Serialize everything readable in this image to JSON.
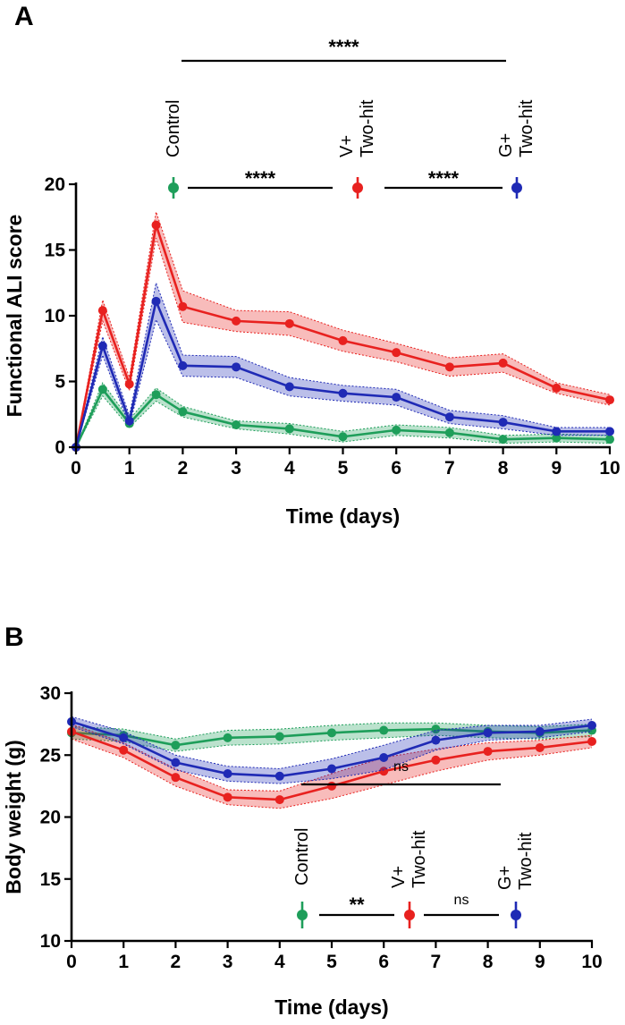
{
  "colors": {
    "control": "#1e9e5a",
    "vplus": "#e8211f",
    "gplus": "#1f2ab5"
  },
  "chart_data": [
    {
      "panel": "A",
      "type": "line",
      "xlabel": "Time (days)",
      "ylabel": "Functional ALI score",
      "xlim": [
        0,
        10
      ],
      "ylim": [
        0,
        20
      ],
      "xticks": [
        0,
        1,
        2,
        3,
        4,
        5,
        6,
        7,
        8,
        9,
        10
      ],
      "yticks": [
        0,
        5,
        10,
        15,
        20
      ],
      "xtick_labels": [
        "0",
        "1",
        "2",
        "3",
        "4",
        "5",
        "6",
        "7",
        "8",
        "9",
        "10"
      ],
      "ytick_labels": [
        "0",
        "5",
        "10",
        "15",
        "20"
      ],
      "x": [
        0,
        0.5,
        1,
        1.5,
        2,
        3,
        4,
        5,
        6,
        7,
        8,
        9,
        10
      ],
      "series": [
        {
          "name": "Control",
          "color": "#1e9e5a",
          "values": [
            0,
            4.4,
            1.8,
            4.0,
            2.7,
            1.7,
            1.4,
            0.8,
            1.3,
            1.1,
            0.6,
            0.7,
            0.6
          ],
          "error": [
            0,
            0.5,
            0.3,
            0.5,
            0.4,
            0.3,
            0.4,
            0.4,
            0.4,
            0.4,
            0.3,
            0.3,
            0.3
          ]
        },
        {
          "name": "V+ Two-hit",
          "color": "#e8211f",
          "values": [
            0,
            10.4,
            4.8,
            16.9,
            10.7,
            9.6,
            9.4,
            8.1,
            7.2,
            6.1,
            6.4,
            4.5,
            3.6
          ],
          "error": [
            0,
            0.8,
            0.5,
            1.0,
            1.2,
            0.8,
            0.9,
            0.8,
            0.7,
            0.7,
            0.7,
            0.4,
            0.4
          ]
        },
        {
          "name": "G+ Two-hit",
          "color": "#1f2ab5",
          "values": [
            0,
            7.7,
            2.0,
            11.1,
            6.2,
            6.1,
            4.6,
            4.1,
            3.8,
            2.3,
            1.9,
            1.2,
            1.2
          ],
          "error": [
            0,
            0.7,
            0.4,
            1.4,
            0.8,
            0.8,
            0.7,
            0.6,
            0.6,
            0.5,
            0.5,
            0.3,
            0.3
          ]
        }
      ],
      "legend_labels": [
        [
          "Control"
        ],
        [
          "V+",
          "Two-hit"
        ],
        [
          "G+",
          "Two-hit"
        ]
      ],
      "annotations": [
        {
          "text": "****",
          "from_group": 0,
          "to_group": 2,
          "level": "top"
        },
        {
          "text": "****",
          "from_group": 0,
          "to_group": 1,
          "level": "legend"
        },
        {
          "text": "****",
          "from_group": 1,
          "to_group": 2,
          "level": "legend"
        }
      ]
    },
    {
      "panel": "B",
      "type": "line",
      "xlabel": "Time (days)",
      "ylabel": "Body weight (g)",
      "xlim": [
        0,
        10
      ],
      "ylim": [
        10,
        30
      ],
      "xticks": [
        0,
        1,
        2,
        3,
        4,
        5,
        6,
        7,
        8,
        9,
        10
      ],
      "yticks": [
        10,
        15,
        20,
        25,
        30
      ],
      "xtick_labels": [
        "0",
        "1",
        "2",
        "3",
        "4",
        "5",
        "6",
        "7",
        "8",
        "9",
        "10"
      ],
      "ytick_labels": [
        "10",
        "15",
        "20",
        "25",
        "30"
      ],
      "x": [
        0,
        1,
        2,
        3,
        4,
        5,
        6,
        7,
        8,
        9,
        10
      ],
      "series": [
        {
          "name": "Control",
          "color": "#1e9e5a",
          "values": [
            26.8,
            26.6,
            25.8,
            26.4,
            26.5,
            26.8,
            27.0,
            27.1,
            26.9,
            26.8,
            27.0
          ],
          "error": [
            0.5,
            0.5,
            0.5,
            0.6,
            0.6,
            0.6,
            0.6,
            0.5,
            0.5,
            0.5,
            0.5
          ]
        },
        {
          "name": "V+ Two-hit",
          "color": "#e8211f",
          "values": [
            26.9,
            25.4,
            23.2,
            21.6,
            21.4,
            22.5,
            23.7,
            24.6,
            25.3,
            25.6,
            26.1
          ],
          "error": [
            0.6,
            0.6,
            0.7,
            0.6,
            0.7,
            1.0,
            1.1,
            0.9,
            0.7,
            0.6,
            0.5
          ]
        },
        {
          "name": "G+ Two-hit",
          "color": "#1f2ab5",
          "values": [
            27.7,
            26.4,
            24.4,
            23.5,
            23.3,
            23.9,
            24.8,
            26.2,
            26.8,
            26.9,
            27.4
          ],
          "error": [
            0.4,
            0.5,
            0.6,
            0.6,
            0.6,
            0.8,
            1.0,
            0.8,
            0.6,
            0.5,
            0.5
          ]
        }
      ],
      "legend_labels": [
        [
          "Control"
        ],
        [
          "V+",
          "Two-hit"
        ],
        [
          "G+",
          "Two-hit"
        ]
      ],
      "annotations": [
        {
          "text": "ns",
          "from_group": 0,
          "to_group": 2,
          "level": "top"
        },
        {
          "text": "**",
          "from_group": 0,
          "to_group": 1,
          "level": "legend"
        },
        {
          "text": "ns",
          "from_group": 1,
          "to_group": 2,
          "level": "legend"
        }
      ]
    }
  ]
}
